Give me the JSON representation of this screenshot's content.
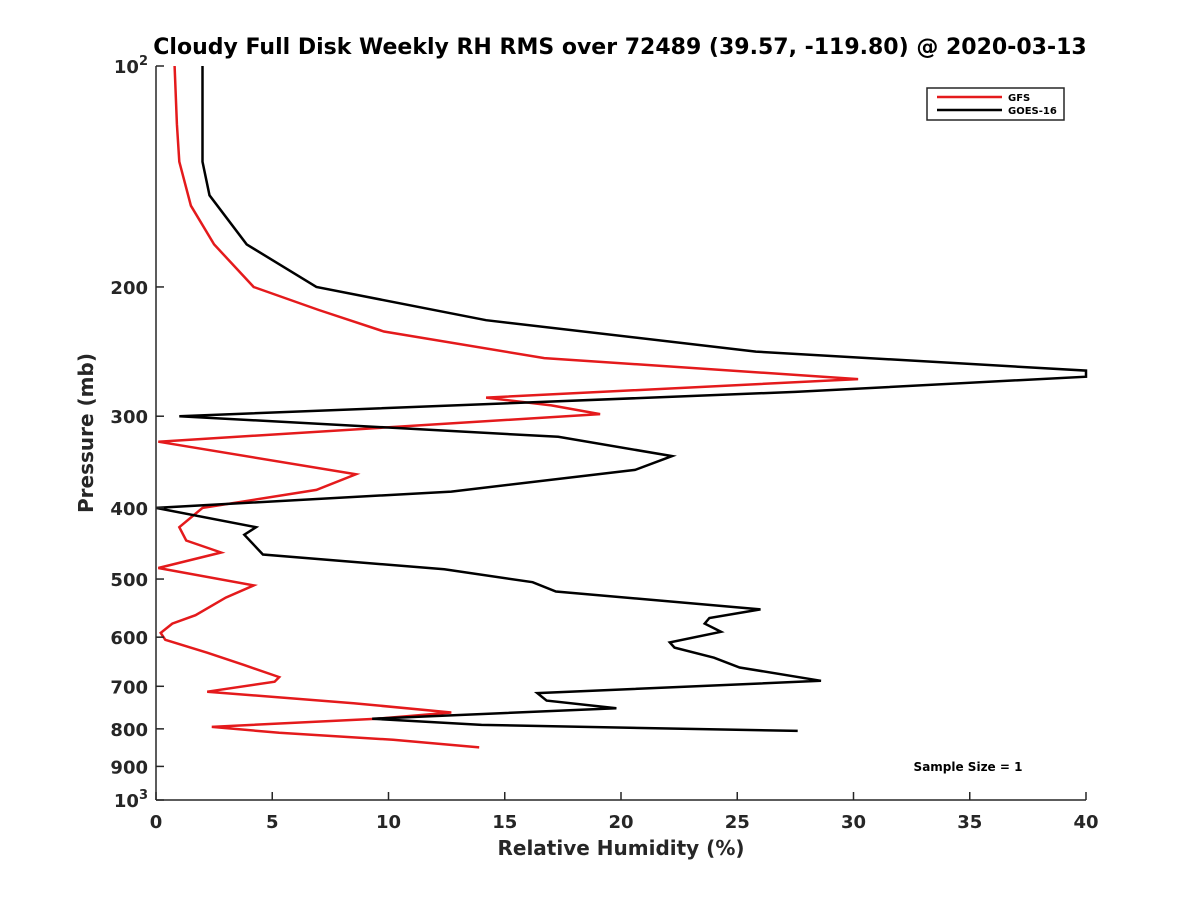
{
  "chart_data": {
    "type": "line",
    "title": "Cloudy Full Disk Weekly RH RMS over 72489 (39.57, -119.80) @ 2020-03-13",
    "xlabel": "Relative Humidity (%)",
    "ylabel": "Pressure (mb)",
    "xlim": [
      0,
      40
    ],
    "ylim": [
      100,
      1000
    ],
    "yscale": "log",
    "y_reversed": true,
    "grid": false,
    "legend_position": "top-right",
    "x_ticks": [
      "0",
      "5",
      "10",
      "15",
      "20",
      "25",
      "30",
      "35",
      "40"
    ],
    "y_ticks": [
      {
        "value": 100,
        "base": "10",
        "exp": "2"
      },
      {
        "value": 200,
        "label": "200"
      },
      {
        "value": 300,
        "label": "300"
      },
      {
        "value": 400,
        "label": "400"
      },
      {
        "value": 500,
        "label": "500"
      },
      {
        "value": 600,
        "label": "600"
      },
      {
        "value": 700,
        "label": "700"
      },
      {
        "value": 800,
        "label": "800"
      },
      {
        "value": 900,
        "label": "900"
      },
      {
        "value": 1000,
        "base": "10",
        "exp": "3"
      }
    ],
    "series": [
      {
        "name": "GFS",
        "color": "#e41a1c",
        "points": [
          [
            0.8,
            100
          ],
          [
            0.9,
            120
          ],
          [
            1.0,
            135
          ],
          [
            1.5,
            155
          ],
          [
            2.5,
            175
          ],
          [
            4.2,
            200
          ],
          [
            7.0,
            215
          ],
          [
            9.8,
            230
          ],
          [
            16.7,
            250
          ],
          [
            30.2,
            267
          ],
          [
            14.2,
            283
          ],
          [
            17.0,
            290
          ],
          [
            19.1,
            298
          ],
          [
            0.1,
            325
          ],
          [
            8.6,
            360
          ],
          [
            6.9,
            378
          ],
          [
            2.0,
            400
          ],
          [
            1.0,
            425
          ],
          [
            1.3,
            443
          ],
          [
            2.8,
            460
          ],
          [
            0.1,
            483
          ],
          [
            4.2,
            510
          ],
          [
            3.0,
            530
          ],
          [
            1.7,
            560
          ],
          [
            0.7,
            575
          ],
          [
            0.2,
            592
          ],
          [
            0.4,
            605
          ],
          [
            2.2,
            630
          ],
          [
            3.8,
            655
          ],
          [
            5.3,
            680
          ],
          [
            5.1,
            690
          ],
          [
            2.2,
            712
          ],
          [
            8.5,
            738
          ],
          [
            12.7,
            760
          ],
          [
            9.5,
            775
          ],
          [
            2.4,
            795
          ],
          [
            5.3,
            810
          ],
          [
            10.2,
            828
          ],
          [
            13.9,
            848
          ]
        ]
      },
      {
        "name": "GOES-16",
        "color": "#000000",
        "points": [
          [
            2.0,
            100
          ],
          [
            2.0,
            115
          ],
          [
            2.0,
            135
          ],
          [
            2.3,
            150
          ],
          [
            3.9,
            175
          ],
          [
            6.9,
            200
          ],
          [
            14.2,
            222
          ],
          [
            25.8,
            245
          ],
          [
            40,
            260
          ],
          [
            40,
            265
          ],
          [
            27.5,
            278
          ],
          [
            1.0,
            300
          ],
          [
            17.3,
            320
          ],
          [
            22.2,
            340
          ],
          [
            20.6,
            355
          ],
          [
            12.7,
            380
          ],
          [
            0.0,
            400
          ],
          [
            4.3,
            425
          ],
          [
            3.8,
            435
          ],
          [
            4.6,
            463
          ],
          [
            12.4,
            485
          ],
          [
            16.2,
            505
          ],
          [
            17.2,
            520
          ],
          [
            26.0,
            550
          ],
          [
            23.8,
            565
          ],
          [
            23.6,
            575
          ],
          [
            24.3,
            590
          ],
          [
            22.1,
            610
          ],
          [
            22.3,
            620
          ],
          [
            24.0,
            640
          ],
          [
            25.1,
            660
          ],
          [
            28.6,
            688
          ],
          [
            16.4,
            715
          ],
          [
            16.8,
            732
          ],
          [
            19.8,
            750
          ],
          [
            9.3,
            775
          ],
          [
            14.0,
            790
          ],
          [
            27.6,
            805
          ]
        ]
      }
    ],
    "annotation": "Sample Size = 1"
  }
}
